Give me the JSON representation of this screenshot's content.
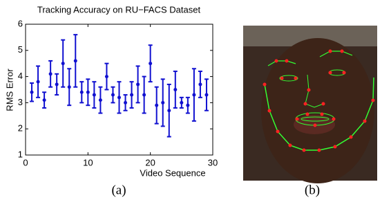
{
  "chart_data": {
    "type": "errorbar",
    "title": "Tracking Accuracy on RU−FACS Dataset",
    "xlabel": "Video Sequence",
    "ylabel": "RMS Error",
    "x": [
      1,
      2,
      3,
      4,
      5,
      6,
      7,
      8,
      9,
      10,
      11,
      12,
      13,
      14,
      15,
      16,
      17,
      18,
      19,
      20,
      21,
      22,
      23,
      24,
      25,
      26,
      27,
      28,
      29
    ],
    "values": [
      3.4,
      3.8,
      3.1,
      4.1,
      3.7,
      4.5,
      3.6,
      4.6,
      3.4,
      3.4,
      3.3,
      3.1,
      4.0,
      3.3,
      3.2,
      3.0,
      3.3,
      3.7,
      3.3,
      4.5,
      2.9,
      3.0,
      2.7,
      3.5,
      3.0,
      2.9,
      3.3,
      3.7,
      3.3
    ],
    "errors": [
      0.35,
      0.6,
      0.3,
      0.5,
      0.4,
      0.9,
      0.7,
      1.0,
      0.4,
      0.5,
      0.5,
      0.5,
      0.5,
      0.3,
      0.6,
      0.3,
      0.5,
      0.7,
      0.7,
      0.7,
      0.7,
      0.9,
      1.0,
      0.7,
      0.2,
      0.3,
      1.0,
      0.5,
      0.6
    ],
    "color": "#1010d0",
    "xlim": [
      0,
      30
    ],
    "xticks": [
      0,
      10,
      20,
      30
    ],
    "ylim": [
      1,
      6
    ],
    "yticks": [
      1,
      2,
      3,
      4,
      5,
      6
    ]
  },
  "captions": [
    "(a)",
    "(b)"
  ]
}
